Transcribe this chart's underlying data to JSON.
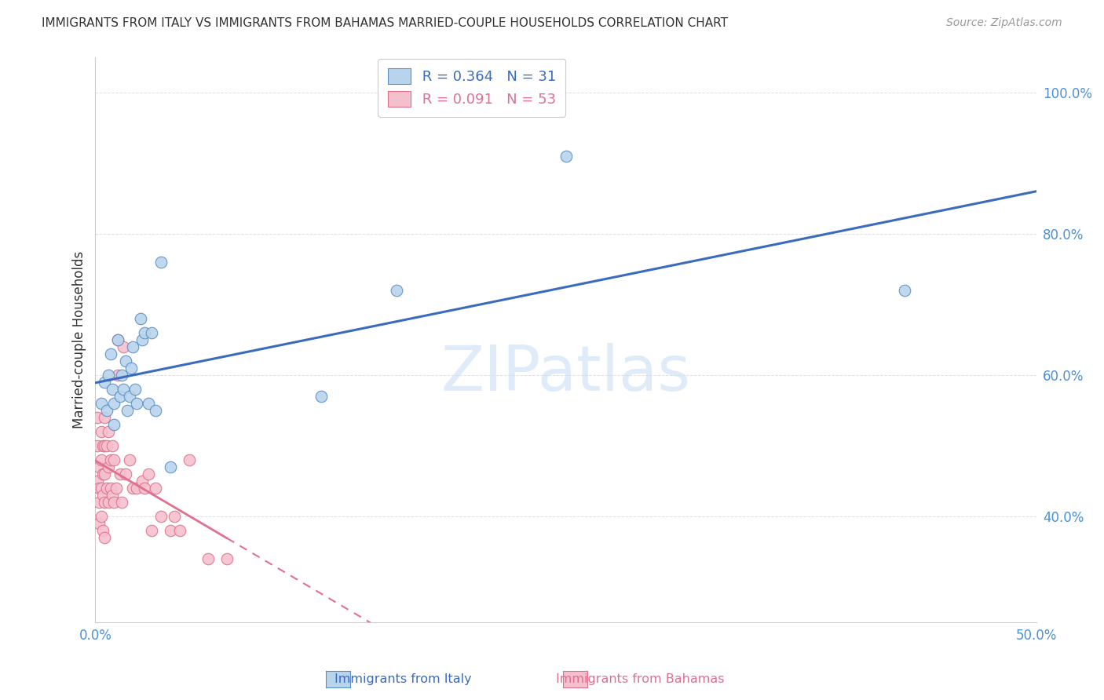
{
  "title": "IMMIGRANTS FROM ITALY VS IMMIGRANTS FROM BAHAMAS MARRIED-COUPLE HOUSEHOLDS CORRELATION CHART",
  "source": "Source: ZipAtlas.com",
  "ylabel": "Married-couple Households",
  "xlim": [
    0.0,
    0.5
  ],
  "ylim": [
    0.25,
    1.05
  ],
  "xticks": [
    0.0,
    0.5
  ],
  "yticks": [
    0.4,
    0.6,
    0.8,
    1.0
  ],
  "ytick_labels": [
    "40.0%",
    "60.0%",
    "80.0%",
    "100.0%"
  ],
  "xtick_labels": [
    "0.0%",
    "50.0%"
  ],
  "italy_color": "#b8d4ec",
  "italy_edge_color": "#5b8ec4",
  "bahamas_color": "#f5c0ce",
  "bahamas_edge_color": "#e0708a",
  "italy_line_color": "#3a6bbf",
  "bahamas_line_color": "#e07090",
  "R_italy": 0.364,
  "N_italy": 31,
  "R_bahamas": 0.091,
  "N_bahamas": 53,
  "watermark": "ZIPatlas",
  "grid_color": "#e0e0e0",
  "italy_x": [
    0.003,
    0.005,
    0.006,
    0.007,
    0.008,
    0.009,
    0.01,
    0.01,
    0.012,
    0.013,
    0.014,
    0.015,
    0.016,
    0.017,
    0.018,
    0.019,
    0.02,
    0.021,
    0.022,
    0.024,
    0.025,
    0.026,
    0.028,
    0.03,
    0.032,
    0.035,
    0.04,
    0.12,
    0.16,
    0.25,
    0.43
  ],
  "italy_y": [
    0.56,
    0.59,
    0.55,
    0.6,
    0.63,
    0.58,
    0.56,
    0.53,
    0.65,
    0.57,
    0.6,
    0.58,
    0.62,
    0.55,
    0.57,
    0.61,
    0.64,
    0.58,
    0.56,
    0.68,
    0.65,
    0.66,
    0.56,
    0.66,
    0.55,
    0.76,
    0.47,
    0.57,
    0.72,
    0.91,
    0.72
  ],
  "bahamas_x": [
    0.001,
    0.001,
    0.001,
    0.002,
    0.002,
    0.002,
    0.002,
    0.003,
    0.003,
    0.003,
    0.003,
    0.004,
    0.004,
    0.004,
    0.004,
    0.005,
    0.005,
    0.005,
    0.005,
    0.005,
    0.006,
    0.006,
    0.007,
    0.007,
    0.007,
    0.008,
    0.008,
    0.009,
    0.009,
    0.01,
    0.01,
    0.011,
    0.012,
    0.012,
    0.013,
    0.014,
    0.015,
    0.016,
    0.018,
    0.02,
    0.022,
    0.025,
    0.026,
    0.028,
    0.03,
    0.032,
    0.035,
    0.04,
    0.042,
    0.045,
    0.05,
    0.06,
    0.07
  ],
  "bahamas_y": [
    0.54,
    0.5,
    0.45,
    0.42,
    0.47,
    0.44,
    0.39,
    0.52,
    0.48,
    0.44,
    0.4,
    0.5,
    0.46,
    0.43,
    0.38,
    0.54,
    0.5,
    0.46,
    0.42,
    0.37,
    0.5,
    0.44,
    0.52,
    0.47,
    0.42,
    0.48,
    0.44,
    0.5,
    0.43,
    0.48,
    0.42,
    0.44,
    0.65,
    0.6,
    0.46,
    0.42,
    0.64,
    0.46,
    0.48,
    0.44,
    0.44,
    0.45,
    0.44,
    0.46,
    0.38,
    0.44,
    0.4,
    0.38,
    0.4,
    0.38,
    0.48,
    0.34,
    0.34
  ]
}
